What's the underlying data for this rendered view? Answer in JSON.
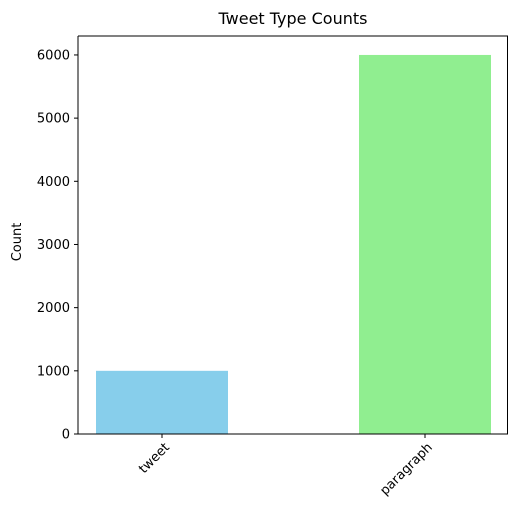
{
  "chart_data": {
    "type": "bar",
    "title": "Tweet Type Counts",
    "xlabel": "",
    "ylabel": "Count",
    "categories": [
      "tweet",
      "paragraph"
    ],
    "values": [
      1000,
      6000
    ],
    "colors": [
      "#87ceeb",
      "#90ee90"
    ],
    "ylim": [
      0,
      6300
    ],
    "yticks": [
      0,
      1000,
      2000,
      3000,
      4000,
      5000,
      6000
    ],
    "ytick_labels": [
      "0",
      "1000",
      "2000",
      "3000",
      "4000",
      "5000",
      "6000"
    ],
    "xtick_rotation": "45 degrees",
    "grid": false,
    "legend": "none"
  }
}
